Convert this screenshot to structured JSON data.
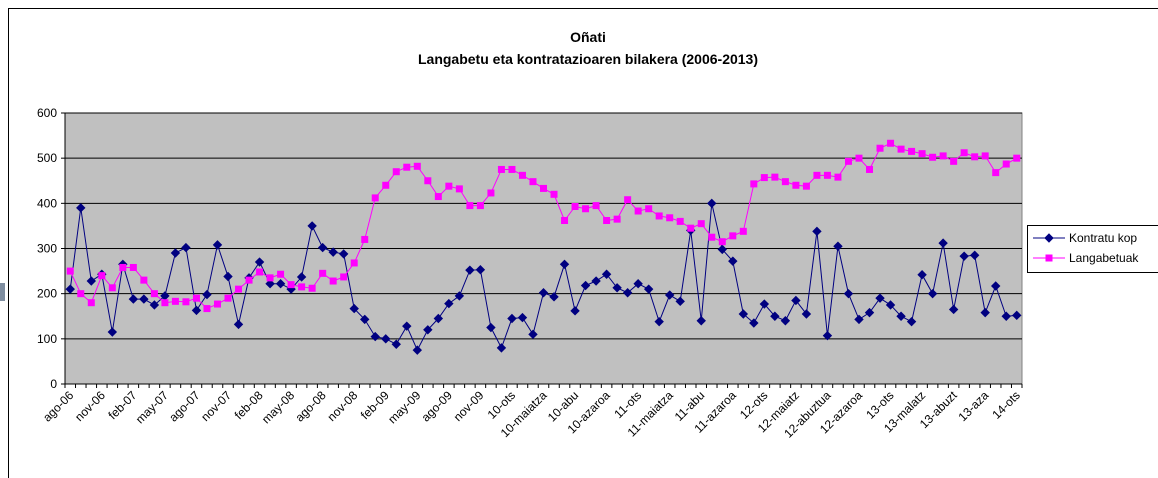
{
  "chart_data": {
    "type": "line",
    "title": "Oñati",
    "subtitle": "Langabetu eta kontratazioaren bilakera (2006-2013)",
    "categories": [
      "ago-06",
      null,
      null,
      "nov-06",
      null,
      null,
      "feb-07",
      null,
      null,
      "may-07",
      null,
      null,
      "ago-07",
      null,
      null,
      "nov-07",
      null,
      null,
      "feb-08",
      null,
      null,
      "may-08",
      null,
      null,
      "ago-08",
      null,
      null,
      "nov-08",
      null,
      null,
      "feb-09",
      null,
      null,
      "may-09",
      null,
      null,
      "ago-09",
      null,
      null,
      "nov-09",
      null,
      null,
      "10-ots",
      null,
      null,
      "10-maiatza",
      null,
      null,
      "10-abu",
      null,
      null,
      "10-azaroa",
      null,
      null,
      "11-ots",
      null,
      null,
      "11-maiatza",
      null,
      null,
      "11-abu",
      null,
      null,
      "11-azaroa",
      null,
      null,
      "12-ots",
      null,
      null,
      "12-maiatz",
      null,
      null,
      "12-abuztua",
      null,
      null,
      "12-azaroa",
      null,
      null,
      "13-ots",
      null,
      null,
      "13-malatz",
      null,
      null,
      "13-abuzt",
      null,
      null,
      "13-aza",
      null,
      null,
      "14-ots"
    ],
    "series": [
      {
        "name": "Kontratu kop",
        "color": "#000080",
        "marker": "diamond",
        "values": [
          210,
          390,
          228,
          243,
          115,
          265,
          188,
          188,
          175,
          195,
          290,
          302,
          163,
          198,
          308,
          238,
          132,
          235,
          270,
          222,
          222,
          210,
          237,
          350,
          302,
          292,
          288,
          167,
          143,
          105,
          100,
          88,
          128,
          75,
          120,
          145,
          178,
          195,
          252,
          253,
          125,
          80,
          145,
          147,
          110,
          202,
          193,
          265,
          162,
          218,
          228,
          243,
          213,
          202,
          222,
          210,
          138,
          197,
          183,
          340,
          140,
          400,
          298,
          272,
          155,
          135,
          177,
          150,
          140,
          185,
          155,
          338,
          107,
          305,
          200,
          143,
          158,
          190,
          175,
          150,
          138,
          242,
          200,
          312,
          165,
          283,
          285,
          158,
          217,
          150,
          152
        ]
      },
      {
        "name": "Langabetuak",
        "color": "#ff00ff",
        "marker": "square",
        "values": [
          250,
          200,
          180,
          240,
          213,
          258,
          258,
          230,
          200,
          180,
          183,
          182,
          190,
          167,
          177,
          190,
          210,
          230,
          248,
          235,
          243,
          220,
          215,
          212,
          245,
          228,
          237,
          268,
          320,
          412,
          440,
          470,
          480,
          482,
          450,
          415,
          438,
          432,
          395,
          395,
          423,
          475,
          475,
          462,
          448,
          433,
          420,
          362,
          393,
          388,
          395,
          362,
          365,
          408,
          383,
          388,
          372,
          368,
          360,
          345,
          355,
          325,
          315,
          328,
          338,
          443,
          457,
          458,
          448,
          440,
          438,
          462,
          462,
          458,
          493,
          500,
          475,
          522,
          533,
          520,
          515,
          510,
          502,
          505,
          493,
          512,
          503,
          505,
          468,
          487,
          500
        ]
      }
    ],
    "ylim": [
      0,
      600
    ],
    "yticks": [
      0,
      100,
      200,
      300,
      400,
      500,
      600
    ],
    "grid": true,
    "plot_background": "#c0c0c0",
    "legend": "right"
  }
}
